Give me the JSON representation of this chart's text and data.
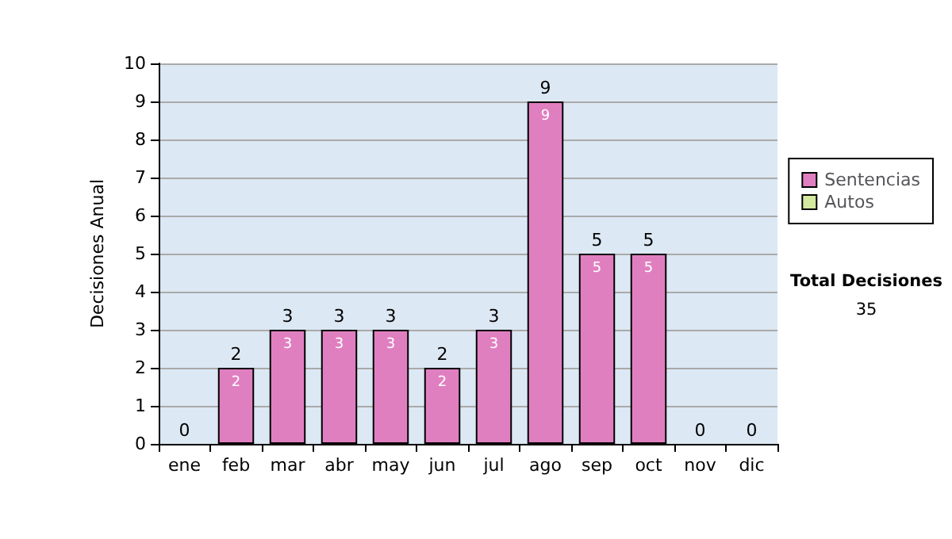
{
  "chart_data": {
    "type": "bar",
    "stacked": true,
    "ylabel": "Decisiones Anual",
    "categories": [
      "ene",
      "feb",
      "mar",
      "abr",
      "may",
      "jun",
      "jul",
      "ago",
      "sep",
      "oct",
      "nov",
      "dic"
    ],
    "series": [
      {
        "name": "Sentencias",
        "color": "#e07fc0",
        "values": [
          0,
          2,
          3,
          3,
          3,
          2,
          3,
          9,
          5,
          5,
          0,
          0
        ],
        "value_labels": [
          null,
          "2",
          "3",
          "3",
          "3",
          "2",
          "3",
          "9",
          "5",
          "5",
          null,
          null
        ]
      },
      {
        "name": "Autos",
        "color": "#d4e8a0",
        "values": [
          0,
          0,
          0,
          0,
          0,
          0,
          0,
          0,
          0,
          0,
          0,
          0
        ]
      }
    ],
    "totals": [
      "0",
      "2",
      "3",
      "3",
      "3",
      "2",
      "3",
      "9",
      "5",
      "5",
      "0",
      "0"
    ],
    "ylim": [
      0,
      10
    ],
    "yticks": [
      0,
      1,
      2,
      3,
      4,
      5,
      6,
      7,
      8,
      9,
      10
    ],
    "grid": "y",
    "legend": "right",
    "annotations": [
      "Total Decisiones",
      "35"
    ]
  }
}
